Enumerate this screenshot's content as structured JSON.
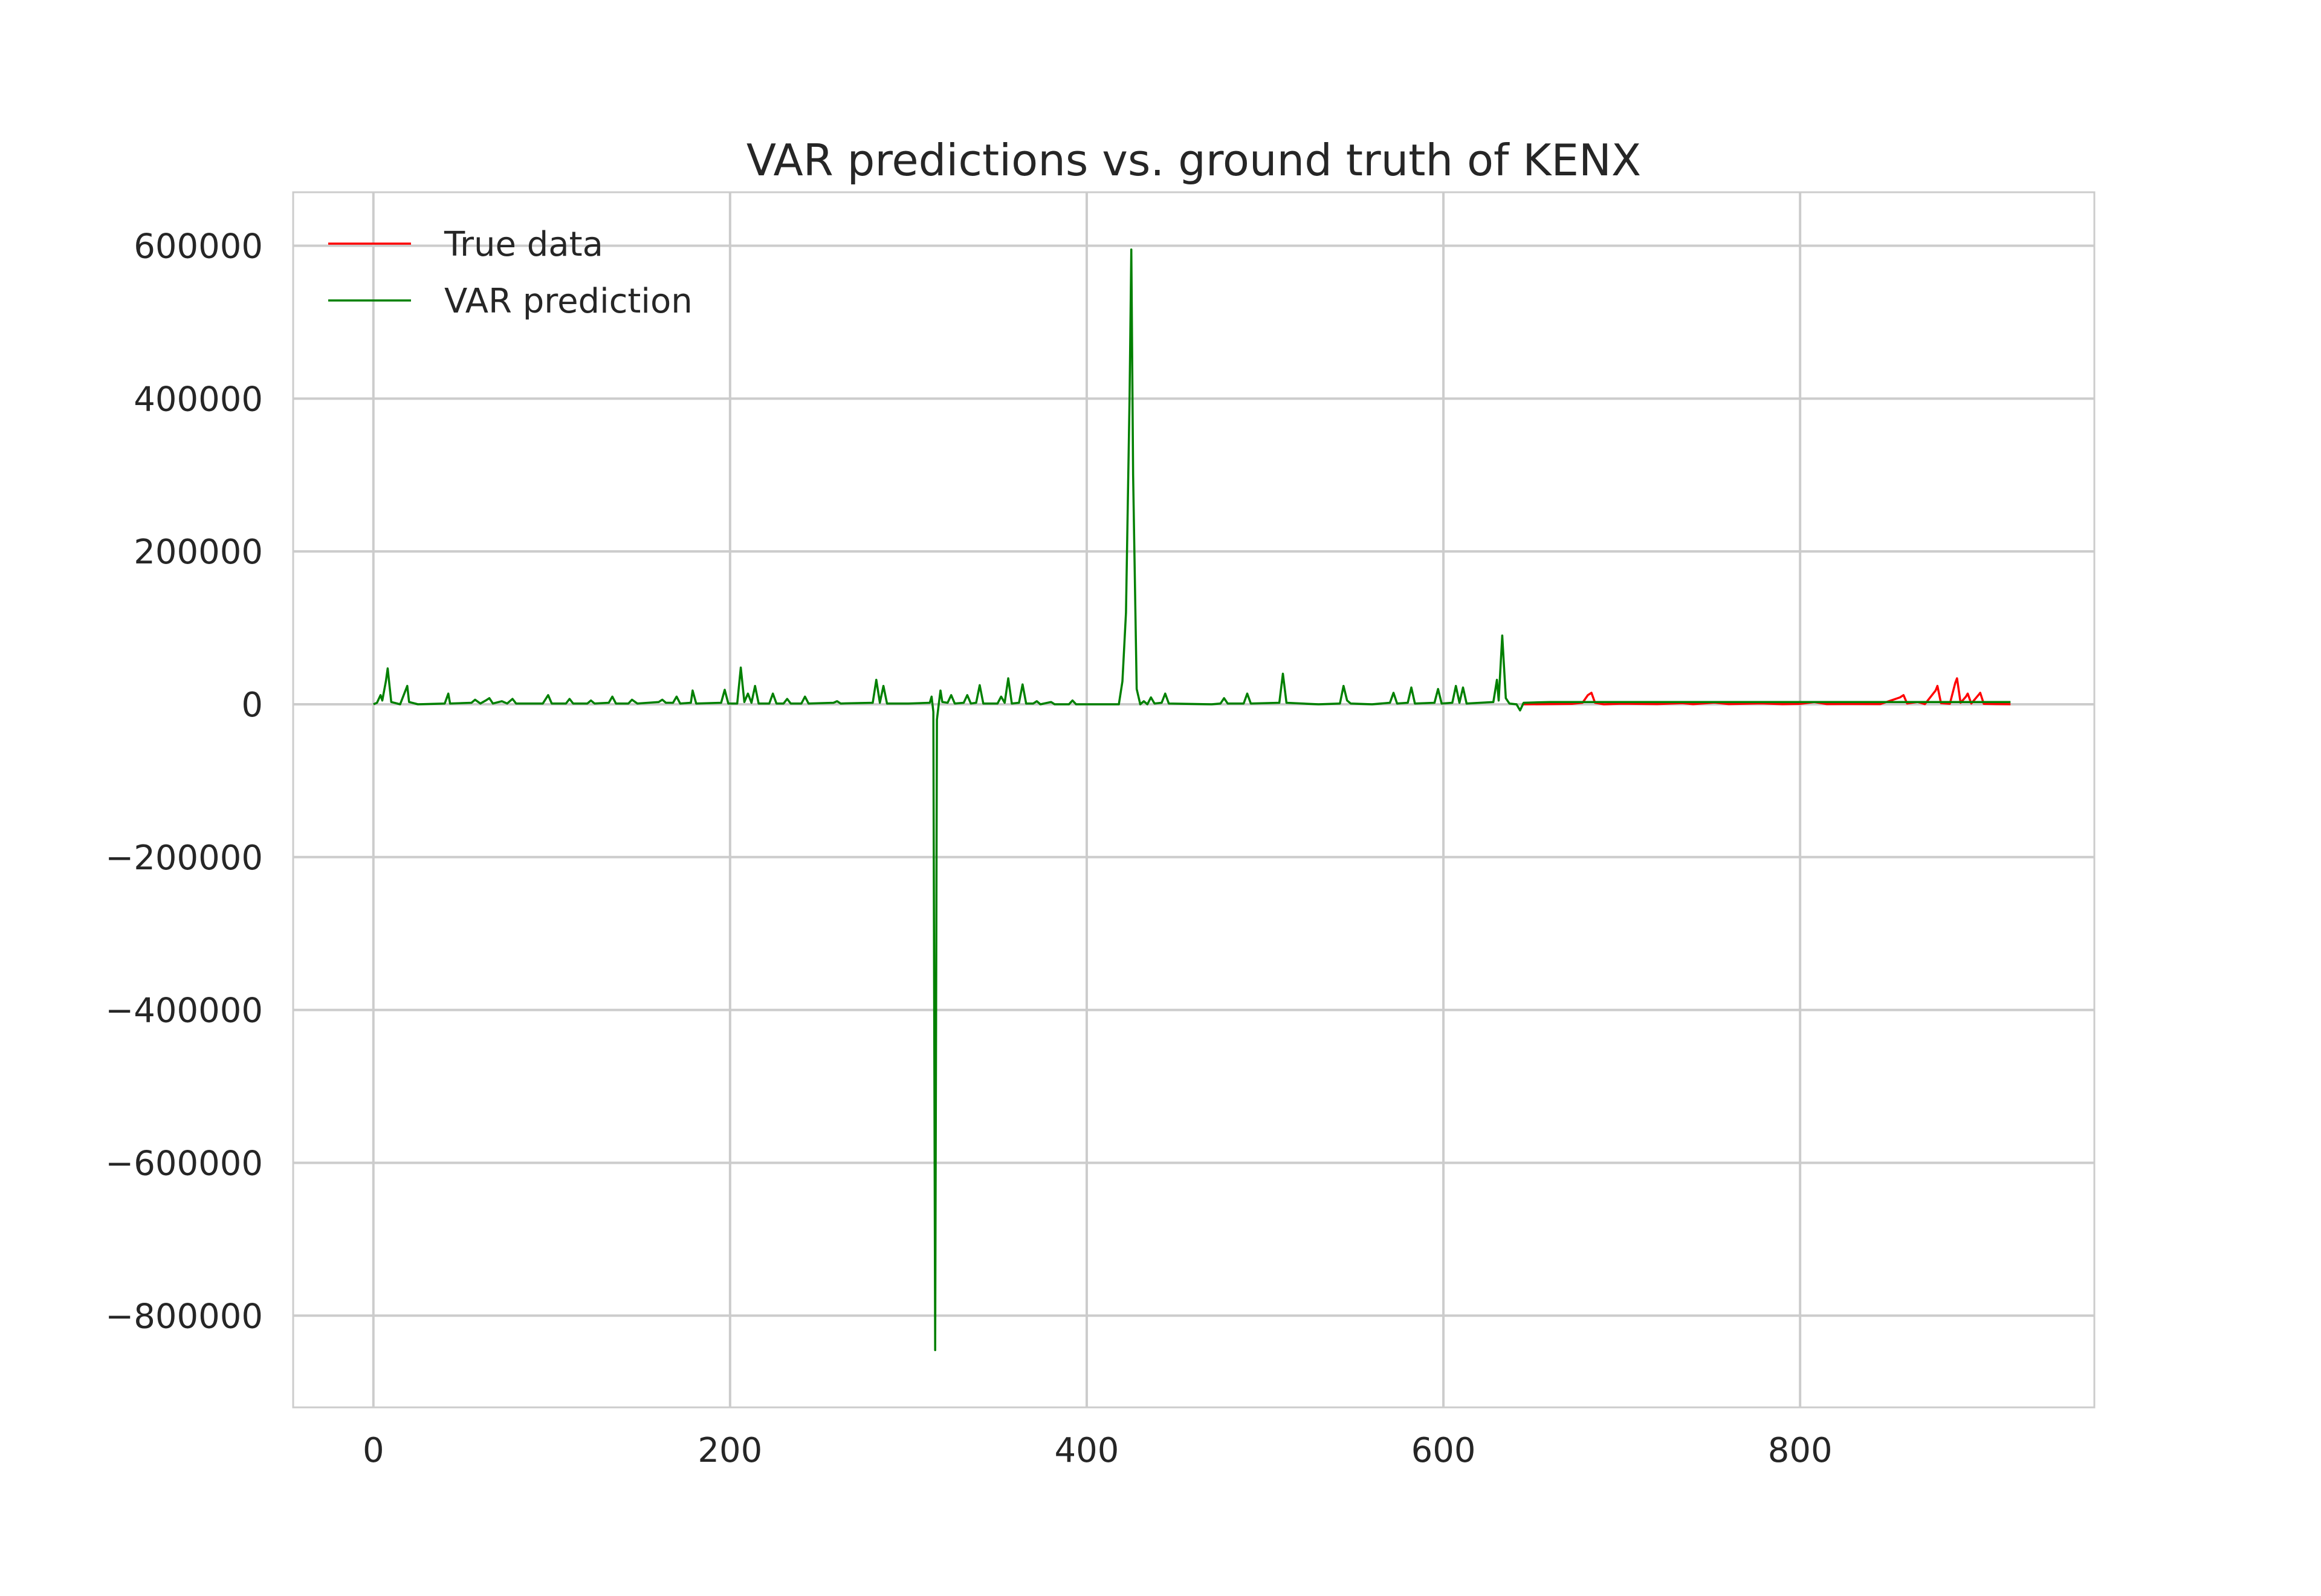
{
  "chart_data": {
    "type": "line",
    "title": "VAR predictions vs. ground truth of KENX",
    "xlabel": "",
    "ylabel": "",
    "xlim": [
      -45,
      965
    ],
    "ylim": [
      -920000,
      670000
    ],
    "grid": true,
    "legend_placement": "top-left",
    "x_ticks": [
      0,
      200,
      400,
      600,
      800
    ],
    "y_ticks": [
      600000,
      400000,
      200000,
      0,
      -200000,
      -400000,
      -600000,
      -800000
    ],
    "x_tick_labels": [
      "0",
      "200",
      "400",
      "600",
      "800"
    ],
    "y_tick_labels": [
      "600000",
      "400000",
      "200000",
      "0",
      "−200000",
      "−400000",
      "−600000",
      "−800000"
    ],
    "series": [
      {
        "name": "True data",
        "color": "#ff0000",
        "points": [
          [
            644,
            0
          ],
          [
            660,
            300
          ],
          [
            672,
            600
          ],
          [
            678,
            2000
          ],
          [
            681,
            12000
          ],
          [
            683,
            15000
          ],
          [
            685,
            2000
          ],
          [
            690,
            0
          ],
          [
            700,
            800
          ],
          [
            720,
            300
          ],
          [
            734,
            1500
          ],
          [
            740,
            200
          ],
          [
            752,
            2200
          ],
          [
            760,
            300
          ],
          [
            778,
            1200
          ],
          [
            790,
            200
          ],
          [
            800,
            500
          ],
          [
            808,
            2800
          ],
          [
            815,
            300
          ],
          [
            830,
            400
          ],
          [
            845,
            300
          ],
          [
            856,
            9000
          ],
          [
            858,
            12000
          ],
          [
            860,
            1000
          ],
          [
            866,
            3000
          ],
          [
            870,
            200
          ],
          [
            876,
            18000
          ],
          [
            877,
            24000
          ],
          [
            879,
            1500
          ],
          [
            884,
            700
          ],
          [
            887,
            28000
          ],
          [
            888,
            34000
          ],
          [
            890,
            2000
          ],
          [
            893,
            10000
          ],
          [
            894,
            14000
          ],
          [
            896,
            1000
          ],
          [
            900,
            12000
          ],
          [
            901,
            15000
          ],
          [
            903,
            500
          ],
          [
            910,
            300
          ],
          [
            918,
            100
          ]
        ]
      },
      {
        "name": "VAR prediction",
        "color": "#008000",
        "points": [
          [
            0,
            0
          ],
          [
            2,
            2000
          ],
          [
            4,
            12000
          ],
          [
            5,
            5000
          ],
          [
            7,
            30000
          ],
          [
            8,
            47000
          ],
          [
            10,
            3000
          ],
          [
            15,
            0
          ],
          [
            19,
            24000
          ],
          [
            20,
            3000
          ],
          [
            25,
            0
          ],
          [
            40,
            1000
          ],
          [
            42,
            14000
          ],
          [
            43,
            1000
          ],
          [
            55,
            2000
          ],
          [
            57,
            6000
          ],
          [
            60,
            1000
          ],
          [
            63,
            5000
          ],
          [
            65,
            8000
          ],
          [
            67,
            1000
          ],
          [
            72,
            4000
          ],
          [
            75,
            1000
          ],
          [
            78,
            7000
          ],
          [
            80,
            1000
          ],
          [
            95,
            1000
          ],
          [
            98,
            12000
          ],
          [
            100,
            1000
          ],
          [
            108,
            1000
          ],
          [
            110,
            7000
          ],
          [
            112,
            1000
          ],
          [
            120,
            1000
          ],
          [
            122,
            5000
          ],
          [
            124,
            1000
          ],
          [
            132,
            2000
          ],
          [
            134,
            10000
          ],
          [
            136,
            1000
          ],
          [
            143,
            1000
          ],
          [
            145,
            6000
          ],
          [
            148,
            1000
          ],
          [
            160,
            3000
          ],
          [
            162,
            6000
          ],
          [
            164,
            2000
          ],
          [
            168,
            2000
          ],
          [
            170,
            10000
          ],
          [
            172,
            1000
          ],
          [
            178,
            2000
          ],
          [
            179,
            18000
          ],
          [
            181,
            1000
          ],
          [
            195,
            2000
          ],
          [
            197,
            19000
          ],
          [
            199,
            1000
          ],
          [
            204,
            1000
          ],
          [
            206,
            48000
          ],
          [
            208,
            3000
          ],
          [
            210,
            14000
          ],
          [
            212,
            2000
          ],
          [
            214,
            24000
          ],
          [
            216,
            1000
          ],
          [
            222,
            1000
          ],
          [
            224,
            14000
          ],
          [
            226,
            1000
          ],
          [
            230,
            1000
          ],
          [
            232,
            7000
          ],
          [
            234,
            1000
          ],
          [
            240,
            1000
          ],
          [
            242,
            10000
          ],
          [
            244,
            1000
          ],
          [
            258,
            2000
          ],
          [
            260,
            4000
          ],
          [
            262,
            1000
          ],
          [
            280,
            2000
          ],
          [
            282,
            32000
          ],
          [
            284,
            2000
          ],
          [
            286,
            24000
          ],
          [
            288,
            1000
          ],
          [
            300,
            1000
          ],
          [
            312,
            2000
          ],
          [
            313,
            10000
          ],
          [
            314,
            -10000
          ],
          [
            315,
            -845000
          ],
          [
            316,
            -20000
          ],
          [
            317,
            0
          ],
          [
            318,
            18000
          ],
          [
            319,
            3000
          ],
          [
            322,
            2000
          ],
          [
            324,
            12000
          ],
          [
            326,
            1000
          ],
          [
            331,
            2000
          ],
          [
            333,
            12000
          ],
          [
            335,
            1000
          ],
          [
            338,
            2000
          ],
          [
            340,
            25000
          ],
          [
            342,
            1000
          ],
          [
            350,
            1000
          ],
          [
            352,
            10000
          ],
          [
            354,
            2000
          ],
          [
            356,
            34000
          ],
          [
            358,
            1000
          ],
          [
            362,
            2000
          ],
          [
            364,
            26000
          ],
          [
            366,
            1000
          ],
          [
            370,
            1000
          ],
          [
            372,
            4000
          ],
          [
            374,
            0
          ],
          [
            380,
            3000
          ],
          [
            382,
            0
          ],
          [
            390,
            0
          ],
          [
            392,
            5000
          ],
          [
            394,
            0
          ],
          [
            418,
            0
          ],
          [
            420,
            30000
          ],
          [
            422,
            120000
          ],
          [
            424,
            400000
          ],
          [
            425,
            595000
          ],
          [
            426,
            300000
          ],
          [
            428,
            20000
          ],
          [
            430,
            0
          ],
          [
            432,
            4000
          ],
          [
            434,
            0
          ],
          [
            436,
            9000
          ],
          [
            438,
            1000
          ],
          [
            442,
            2000
          ],
          [
            444,
            14000
          ],
          [
            446,
            1000
          ],
          [
            470,
            0
          ],
          [
            475,
            1000
          ],
          [
            477,
            8000
          ],
          [
            479,
            1000
          ],
          [
            488,
            1000
          ],
          [
            490,
            14000
          ],
          [
            492,
            1000
          ],
          [
            508,
            2000
          ],
          [
            510,
            40000
          ],
          [
            512,
            2000
          ],
          [
            530,
            0
          ],
          [
            542,
            1000
          ],
          [
            544,
            24000
          ],
          [
            546,
            5000
          ],
          [
            548,
            1000
          ],
          [
            560,
            0
          ],
          [
            570,
            2000
          ],
          [
            572,
            15000
          ],
          [
            574,
            1000
          ],
          [
            580,
            2000
          ],
          [
            582,
            22000
          ],
          [
            584,
            1000
          ],
          [
            595,
            2000
          ],
          [
            597,
            20000
          ],
          [
            599,
            1000
          ],
          [
            605,
            2000
          ],
          [
            607,
            24000
          ],
          [
            609,
            2000
          ],
          [
            611,
            22000
          ],
          [
            613,
            1000
          ],
          [
            628,
            3000
          ],
          [
            630,
            32000
          ],
          [
            631,
            5000
          ],
          [
            633,
            90000
          ],
          [
            635,
            8000
          ],
          [
            637,
            1000
          ],
          [
            641,
            0
          ],
          [
            643,
            -8000
          ],
          [
            645,
            2000
          ],
          [
            660,
            3000
          ],
          [
            700,
            3000
          ],
          [
            800,
            3000
          ],
          [
            900,
            3000
          ],
          [
            918,
            3000
          ]
        ]
      }
    ]
  }
}
